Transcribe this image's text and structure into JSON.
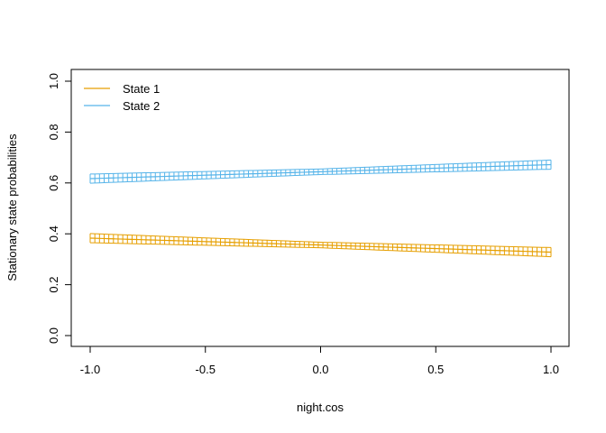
{
  "chart_data": {
    "type": "line",
    "title": "",
    "xlabel": "night.cos",
    "ylabel": "Stationary state probabilities",
    "xlim": [
      -1.0,
      1.0
    ],
    "ylim": [
      0.0,
      1.0
    ],
    "x_ticks": [
      "-1.0",
      "-0.5",
      "0.0",
      "0.5",
      "1.0"
    ],
    "y_ticks": [
      "0.0",
      "0.2",
      "0.4",
      "0.6",
      "0.8",
      "1.0"
    ],
    "grid": false,
    "legend_position": "top-left",
    "error_bars": true,
    "series": [
      {
        "name": "State 1",
        "color": "#E69F00",
        "x": [
          -1.0,
          0.0,
          1.0
        ],
        "y": [
          0.383,
          0.356,
          0.328
        ],
        "lower": [
          0.365,
          0.345,
          0.31
        ],
        "upper": [
          0.401,
          0.367,
          0.346
        ]
      },
      {
        "name": "State 2",
        "color": "#56B4E9",
        "x": [
          -1.0,
          0.0,
          1.0
        ],
        "y": [
          0.617,
          0.644,
          0.672
        ],
        "lower": [
          0.599,
          0.633,
          0.654
        ],
        "upper": [
          0.635,
          0.655,
          0.69
        ]
      }
    ]
  }
}
